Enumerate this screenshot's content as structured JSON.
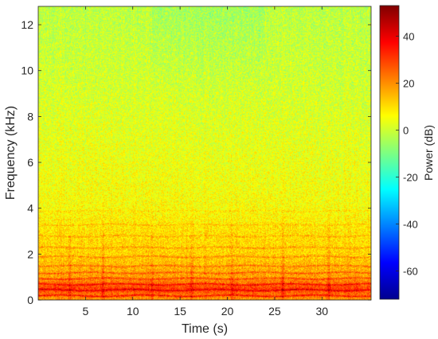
{
  "chart_data": {
    "type": "heatmap",
    "xlabel": "Time (s)",
    "ylabel": "Frequency (kHz)",
    "xlim": [
      0,
      35.2
    ],
    "ylim": [
      0,
      12.8
    ],
    "x_ticks": [
      5,
      10,
      15,
      20,
      25,
      30
    ],
    "x_tick_labels": [
      "5",
      "10",
      "15",
      "20",
      "25",
      "30"
    ],
    "y_ticks": [
      0,
      2,
      4,
      6,
      8,
      10,
      12
    ],
    "y_tick_labels": [
      "0",
      "2",
      "4",
      "6",
      "8",
      "10",
      "12"
    ],
    "colorbar": {
      "label": "Power (dB)",
      "range": [
        -72,
        53
      ],
      "ticks": [
        -60,
        -40,
        -20,
        0,
        20,
        40
      ],
      "tick_labels": [
        "-60",
        "-40",
        "-20",
        "0",
        "20",
        "40"
      ],
      "colormap": "jet"
    },
    "grid": false,
    "power_db_by_frequency": {
      "frequency_khz": [
        0.1,
        0.5,
        1,
        2,
        3,
        4,
        6,
        8,
        10,
        12.8
      ],
      "typical_power_db": [
        20,
        30,
        18,
        12,
        10,
        6,
        4,
        2,
        0,
        -2
      ]
    },
    "harmonic_bands_khz": [
      0.2,
      0.45,
      0.7,
      0.95,
      1.2,
      1.5,
      1.9,
      2.3,
      2.8,
      3.3,
      3.9
    ],
    "onset_times_s": [
      3.3,
      6.8,
      12.0,
      16.2,
      20.5,
      25.8,
      30.7
    ]
  },
  "colors": {
    "jet_dark_blue": "#00008f",
    "jet_cyan": "#00ffff",
    "jet_yellow": "#ffff00",
    "jet_dark_red": "#800000",
    "axis": "#262626"
  }
}
